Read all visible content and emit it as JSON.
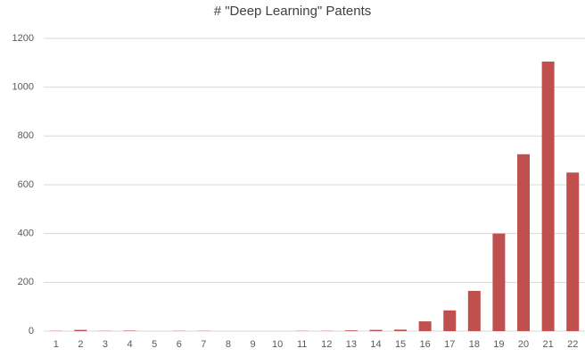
{
  "chart_data": {
    "type": "bar",
    "title": "# \"Deep Learning\" Patents",
    "categories": [
      "1",
      "2",
      "3",
      "4",
      "5",
      "6",
      "7",
      "8",
      "9",
      "10",
      "11",
      "12",
      "13",
      "14",
      "15",
      "16",
      "17",
      "18",
      "19",
      "20",
      "21",
      "22"
    ],
    "values": [
      1,
      5,
      1,
      2,
      0,
      1,
      1,
      0,
      0,
      0,
      1,
      1,
      3,
      5,
      6,
      40,
      85,
      165,
      400,
      725,
      1105,
      650
    ],
    "color": "#c0504d",
    "ylim": [
      0,
      1200
    ],
    "yticks": [
      0,
      200,
      400,
      600,
      800,
      1000,
      1200
    ],
    "grid": true
  }
}
